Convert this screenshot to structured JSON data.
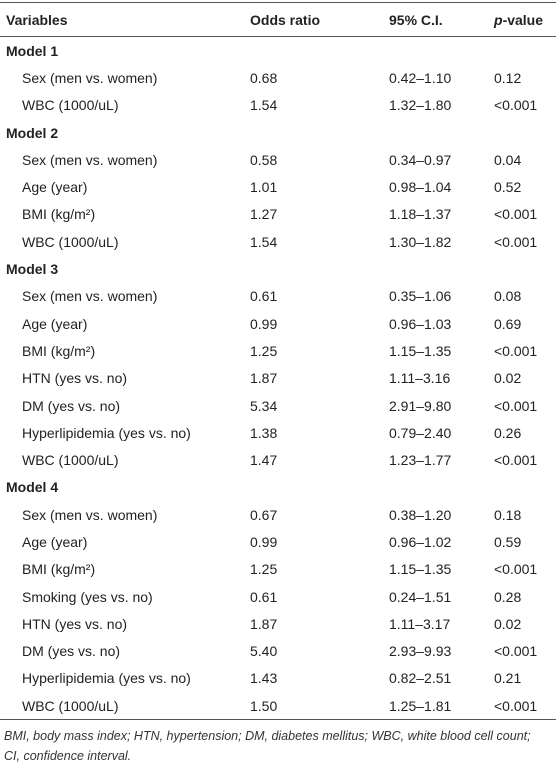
{
  "table": {
    "header": [
      "Variables",
      "Odds ratio",
      "95% C.I.",
      "p-value"
    ],
    "groups": [
      {
        "label": "Model 1",
        "rows": [
          [
            "Sex (men vs. women)",
            "0.68",
            "0.42–1.10",
            "0.12"
          ],
          [
            "WBC (1000/uL)",
            "1.54",
            "1.32–1.80",
            "<0.001"
          ]
        ]
      },
      {
        "label": "Model 2",
        "rows": [
          [
            "Sex (men vs. women)",
            "0.58",
            "0.34–0.97",
            "0.04"
          ],
          [
            "Age (year)",
            "1.01",
            "0.98–1.04",
            "0.52"
          ],
          [
            "BMI (kg/m²)",
            "1.27",
            "1.18–1.37",
            "<0.001"
          ],
          [
            "WBC (1000/uL)",
            "1.54",
            "1.30–1.82",
            "<0.001"
          ]
        ]
      },
      {
        "label": "Model 3",
        "rows": [
          [
            "Sex (men vs. women)",
            "0.61",
            "0.35–1.06",
            "0.08"
          ],
          [
            "Age (year)",
            "0.99",
            "0.96–1.03",
            "0.69"
          ],
          [
            "BMI (kg/m²)",
            "1.25",
            "1.15–1.35",
            "<0.001"
          ],
          [
            "HTN (yes vs. no)",
            "1.87",
            "1.11–3.16",
            "0.02"
          ],
          [
            "DM (yes vs. no)",
            "5.34",
            "2.91–9.80",
            "<0.001"
          ],
          [
            "Hyperlipidemia (yes vs. no)",
            "1.38",
            "0.79–2.40",
            "0.26"
          ],
          [
            "WBC (1000/uL)",
            "1.47",
            "1.23–1.77",
            "<0.001"
          ]
        ]
      },
      {
        "label": "Model 4",
        "rows": [
          [
            "Sex (men vs. women)",
            "0.67",
            "0.38–1.20",
            "0.18"
          ],
          [
            "Age (year)",
            "0.99",
            "0.96–1.02",
            "0.59"
          ],
          [
            "BMI (kg/m²)",
            "1.25",
            "1.15–1.35",
            "<0.001"
          ],
          [
            "Smoking (yes vs. no)",
            "0.61",
            "0.24–1.51",
            "0.28"
          ],
          [
            "HTN (yes vs. no)",
            "1.87",
            "1.11–3.17",
            "0.02"
          ],
          [
            "DM (yes vs. no)",
            "5.40",
            "2.93–9.93",
            "<0.001"
          ],
          [
            "Hyperlipidemia (yes vs. no)",
            "1.43",
            "0.82–2.51",
            "0.21"
          ],
          [
            "WBC (1000/uL)",
            "1.50",
            "1.25–1.81",
            "<0.001"
          ]
        ]
      }
    ],
    "footnote": "BMI, body mass index; HTN, hypertension; DM, diabetes mellitus; WBC, white blood cell count; CI, confidence interval."
  }
}
